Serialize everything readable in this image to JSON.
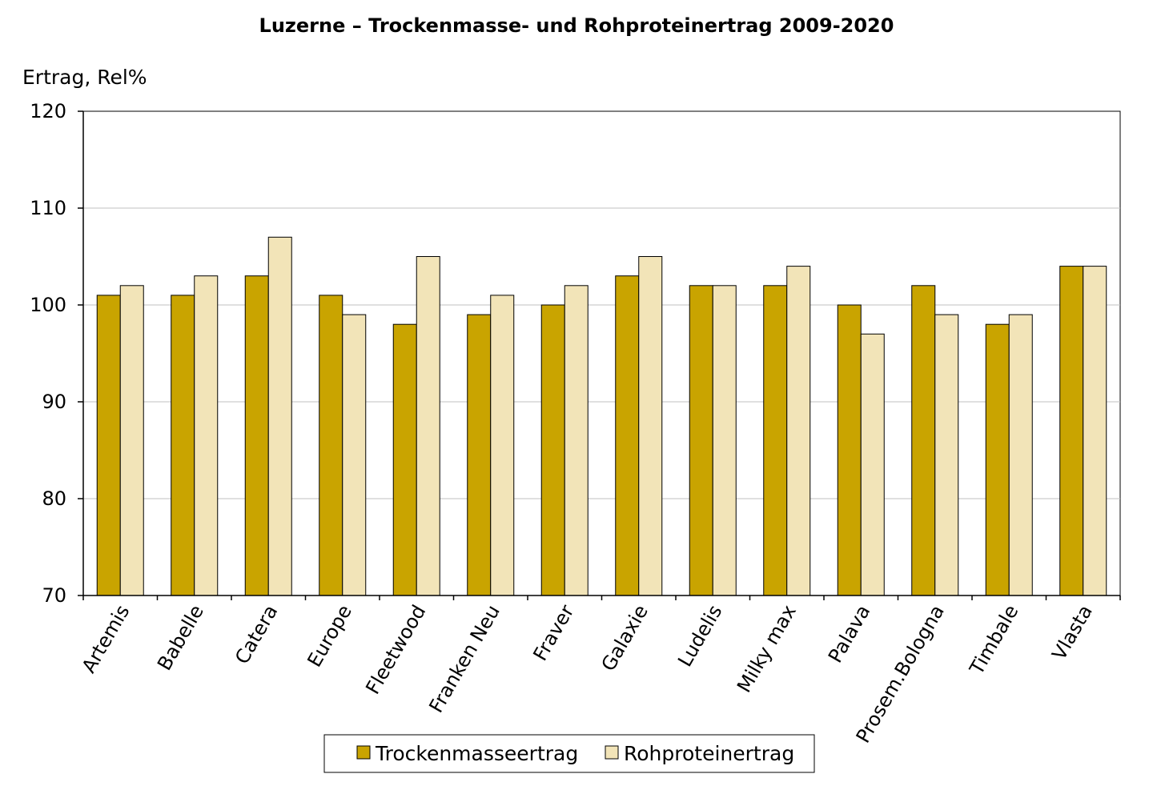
{
  "chart_data": {
    "type": "bar",
    "title": "Luzerne – Trockenmasse- und Rohproteinertrag 2009-2020",
    "ylabel": "Ertrag, Rel%",
    "xlabel": "",
    "ylim": [
      70,
      120
    ],
    "yticks": [
      70,
      80,
      90,
      100,
      110,
      120
    ],
    "grid": true,
    "legend_position": "bottom",
    "categories": [
      "Artemis",
      "Babelle",
      "Catera",
      "Europe",
      "Fleetwood",
      "Franken Neu",
      "Fraver",
      "Galaxie",
      "Ludelis",
      "Milky max",
      "Palava",
      "Prosem.Bologna",
      "Timbale",
      "Vlasta"
    ],
    "series": [
      {
        "name": "Trockenmasseertrag",
        "color": "#c9a400",
        "values": [
          101,
          101,
          103,
          101,
          98,
          99,
          100,
          103,
          102,
          102,
          100,
          102,
          98,
          104
        ]
      },
      {
        "name": "Rohproteinertrag",
        "color": "#f2e4b8",
        "values": [
          102,
          103,
          107,
          99,
          105,
          101,
          102,
          105,
          102,
          104,
          97,
          99,
          99,
          104
        ]
      }
    ]
  }
}
